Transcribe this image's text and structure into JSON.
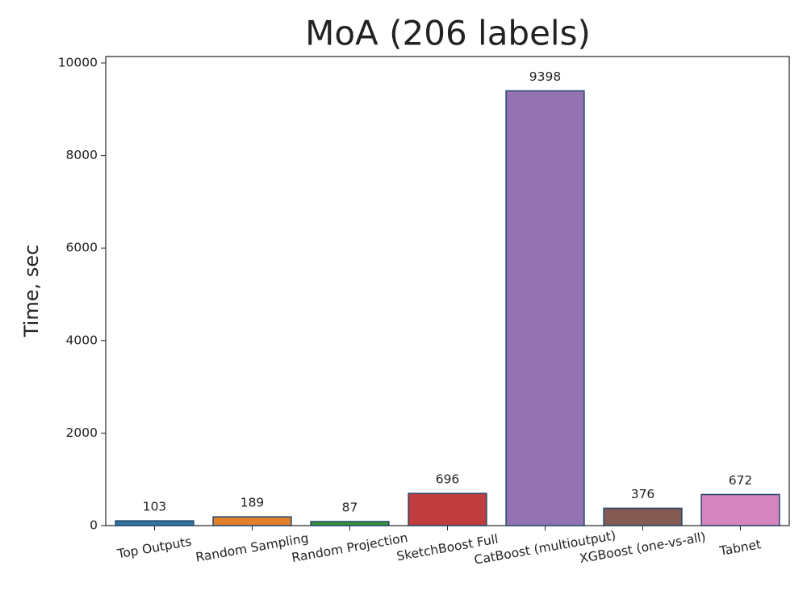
{
  "chart_data": {
    "type": "bar",
    "title": "MoA (206 labels)",
    "y_label": "Time, sec",
    "categories": [
      "Top Outputs",
      "Random Sampling",
      "Random Projection",
      "SketchBoost Full",
      "CatBoost (multioutput)",
      "XGBoost (one-vs-all)",
      "Tabnet"
    ],
    "values": [
      103,
      189,
      87,
      696,
      9398,
      376,
      672
    ],
    "colors": [
      "#3274a1",
      "#e1812c",
      "#3a923a",
      "#c03d3e",
      "#9372b2",
      "#845b53",
      "#d684bd"
    ],
    "edgecolor": "#23466b",
    "ylim": [
      0,
      10140
    ],
    "yticks": [
      0,
      2000,
      4000,
      6000,
      8000,
      10000
    ],
    "grid": false
  }
}
